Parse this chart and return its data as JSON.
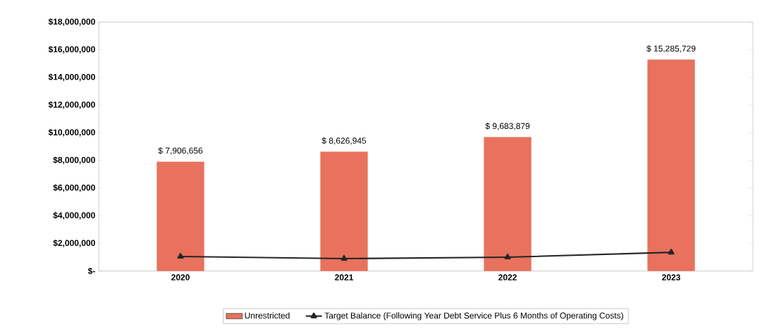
{
  "chart_data": {
    "type": "bar",
    "categories": [
      "2020",
      "2021",
      "2022",
      "2023"
    ],
    "series": [
      {
        "name": "Unrestricted",
        "color": "#e8725e",
        "values": [
          7906656,
          8626945,
          9683879,
          15285729
        ],
        "value_labels": [
          "$ 7,906,656",
          "$ 8,626,945",
          "$ 9,683,879",
          "$ 15,285,729"
        ]
      },
      {
        "name": "Target Balance (Following Year Debt Service Plus 6 Months of Operating Costs)",
        "type": "line",
        "color": "#262626",
        "values": [
          1050000,
          900000,
          1000000,
          1350000
        ]
      }
    ],
    "ylim": [
      0,
      18000000
    ],
    "yticks": [
      {
        "value": 0,
        "label": "$-"
      },
      {
        "value": 2000000,
        "label": "$2,000,000"
      },
      {
        "value": 4000000,
        "label": "$4,000,000"
      },
      {
        "value": 6000000,
        "label": "$6,000,000"
      },
      {
        "value": 8000000,
        "label": "$8,000,000"
      },
      {
        "value": 10000000,
        "label": "$10,000,000"
      },
      {
        "value": 12000000,
        "label": "$12,000,000"
      },
      {
        "value": 14000000,
        "label": "$14,000,000"
      },
      {
        "value": 16000000,
        "label": "$16,000,000"
      },
      {
        "value": 18000000,
        "label": "$18,000,000"
      }
    ],
    "marker": "triangle",
    "line_style": "solid",
    "grid": false,
    "legend": "bottom"
  }
}
